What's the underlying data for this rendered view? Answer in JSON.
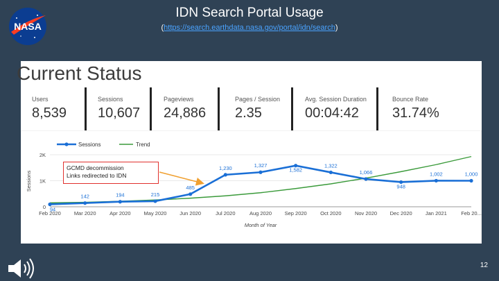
{
  "header": {
    "title": "IDN Search Portal Usage",
    "link_open": "(",
    "link_text": "https://search.earthdata.nasa.gov/portal/idn/search",
    "link_close": ")",
    "logo_text": "NASA"
  },
  "card": {
    "title": "Current Status"
  },
  "metrics": [
    {
      "label": "Users",
      "value": "8,539"
    },
    {
      "label": "Sessions",
      "value": "10,607"
    },
    {
      "label": "Pageviews",
      "value": "24,886"
    },
    {
      "label": "Pages / Session",
      "value": "2.35"
    },
    {
      "label": "Avg. Session Duration",
      "value": "00:04:42"
    },
    {
      "label": "Bounce Rate",
      "value": "31.74%"
    }
  ],
  "note": {
    "line1": "GCMD decommission",
    "line2": "Links redirected to IDN"
  },
  "footer": {
    "page_number": "12"
  },
  "colors": {
    "background": "#2f4255",
    "sessions": "#1a6fd6",
    "trend": "#3a9a3a",
    "annotation": "#e0302d",
    "arrow": "#f0a030"
  },
  "chart_data": {
    "type": "line",
    "xlabel": "Month of Year",
    "ylabel": "Sessions",
    "ylim": [
      0,
      2000
    ],
    "yticks": [
      "0",
      "1K",
      "2K"
    ],
    "categories": [
      "Feb 2020",
      "Mar 2020",
      "Apr 2020",
      "May 2020",
      "Jun 2020",
      "Jul 2020",
      "Aug 2020",
      "Sep 2020",
      "Oct 2020",
      "Nov 2020",
      "Dec 2020",
      "Jan 2021",
      "Feb 20..."
    ],
    "series": [
      {
        "name": "Sessions",
        "values": [
          94,
          142,
          194,
          215,
          485,
          1230,
          1327,
          1582,
          1322,
          1066,
          948,
          1002,
          1000
        ],
        "labels": [
          "94",
          "142",
          "194",
          "215",
          "485",
          "1,230",
          "1,327",
          "1,582",
          "1,322",
          "1,066",
          "948",
          "1,002",
          "1,000"
        ]
      },
      {
        "name": "Trend",
        "values": [
          150,
          170,
          210,
          260,
          330,
          420,
          540,
          700,
          880,
          1100,
          1350,
          1620,
          1930
        ]
      }
    ],
    "legend_position": "top-left"
  }
}
